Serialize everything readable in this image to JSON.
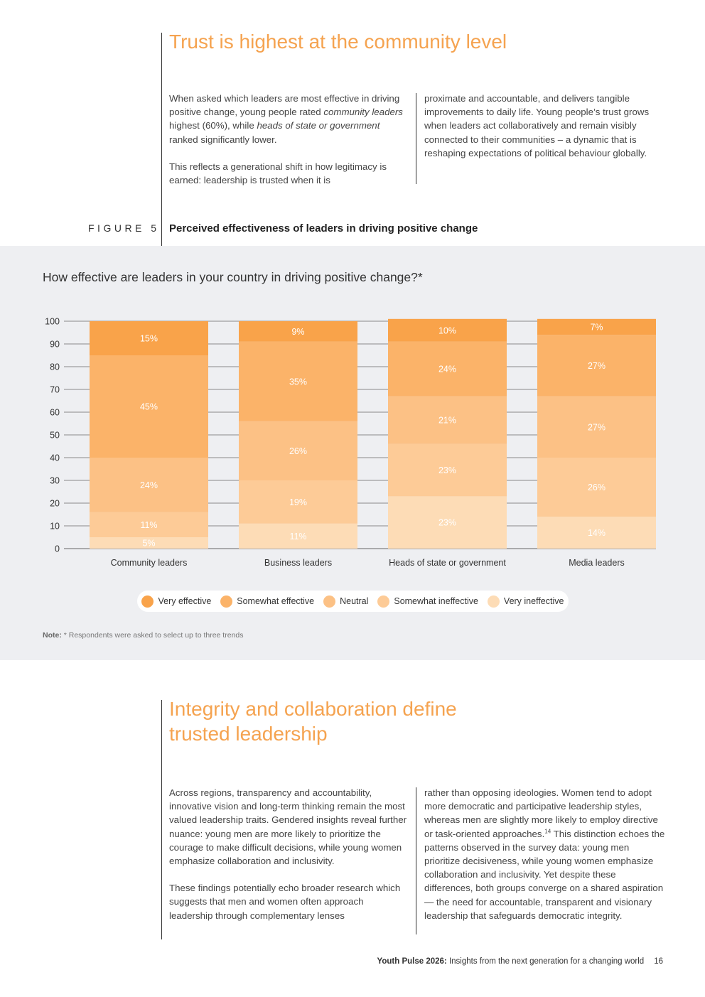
{
  "section1": {
    "title": "Trust is highest at the community level",
    "left_col": {
      "p1_a": "When asked which leaders are most effective in driving positive change, young people rated ",
      "p1_em1": "community leaders",
      "p1_b": " highest (60%), while ",
      "p1_em2": "heads of state or government",
      "p1_c": " ranked significantly lower.",
      "p2": "This reflects a generational shift in how legitimacy is earned: leadership is trusted when it is"
    },
    "right_col": {
      "p1": "proximate and accountable, and delivers tangible improvements to daily life. Young people’s trust grows when leaders act collaboratively and remain visibly connected to their communities – a dynamic that is reshaping expectations of political behaviour globally."
    }
  },
  "figure": {
    "label": "FIGURE 5",
    "title": "Perceived effectiveness of leaders in driving positive change",
    "question": "How effective are leaders in your country in driving positive change?*",
    "note_label": "Note:",
    "note_text": " * Respondents were asked to select up to three trends"
  },
  "chart_data": {
    "type": "bar",
    "stacked": true,
    "categories": [
      "Community leaders",
      "Business leaders",
      "Heads of state or government",
      "Media leaders"
    ],
    "series": [
      {
        "name": "Very ineffective",
        "values": [
          5,
          11,
          23,
          14
        ],
        "labels": [
          "5%",
          "11%",
          "23%",
          "14%"
        ],
        "color": "#fddcb6"
      },
      {
        "name": "Somewhat ineffective",
        "values": [
          11,
          19,
          23,
          26
        ],
        "labels": [
          "11%",
          "19%",
          "23%",
          "26%"
        ],
        "color": "#fdcb97"
      },
      {
        "name": "Neutral",
        "values": [
          24,
          26,
          21,
          27
        ],
        "labels": [
          "24%",
          "26%",
          "21%",
          "27%"
        ],
        "color": "#fcc185"
      },
      {
        "name": "Somewhat effective",
        "values": [
          45,
          35,
          24,
          27
        ],
        "labels": [
          "45%",
          "35%",
          "24%",
          "27%"
        ],
        "color": "#fbb369"
      },
      {
        "name": "Very effective",
        "values": [
          15,
          9,
          10,
          7
        ],
        "labels": [
          "15%",
          "9%",
          "10%",
          "7%"
        ],
        "color": "#f9a34a"
      }
    ],
    "ylim": [
      0,
      100
    ],
    "yticks": [
      "0",
      "10",
      "20",
      "30",
      "40",
      "50",
      "60",
      "70",
      "80",
      "90",
      "100"
    ],
    "legend": [
      "Very effective",
      "Somewhat effective",
      "Neutral",
      "Somewhat ineffective",
      "Very ineffective"
    ],
    "legend_colors": [
      "#f9a34a",
      "#fbb369",
      "#fcc185",
      "#fdcb97",
      "#fddcb6"
    ],
    "grid": true,
    "legend_position": "bottom"
  },
  "section2": {
    "title_line1": "Integrity and collaboration define",
    "title_line2": "trusted leadership",
    "left_col": {
      "p1": "Across regions, transparency and accountability, innovative vision and long-term thinking remain the most valued leadership traits. Gendered insights reveal further nuance: young men are more likely to prioritize the courage to make difficult decisions, while young women emphasize collaboration and inclusivity.",
      "p2": "These findings potentially echo broader research which suggests that men and women often approach leadership through complementary lenses"
    },
    "right_col": {
      "p1_a": "rather than opposing ideologies. Women tend to adopt more democratic and participative leadership styles, whereas men are slightly more likely to employ directive or task-oriented approaches.",
      "p1_sup": "14",
      "p1_b": " This distinction echoes the patterns observed in the survey data: young men prioritize decisiveness, while young women emphasize collaboration and inclusivity. Yet despite these differences, both groups converge on a shared aspiration — the need for accountable, transparent and visionary leadership that safeguards democratic integrity."
    }
  },
  "footer": {
    "title": "Youth Pulse 2026:",
    "subtitle": " Insights from the next generation for a changing world",
    "page": "16"
  }
}
